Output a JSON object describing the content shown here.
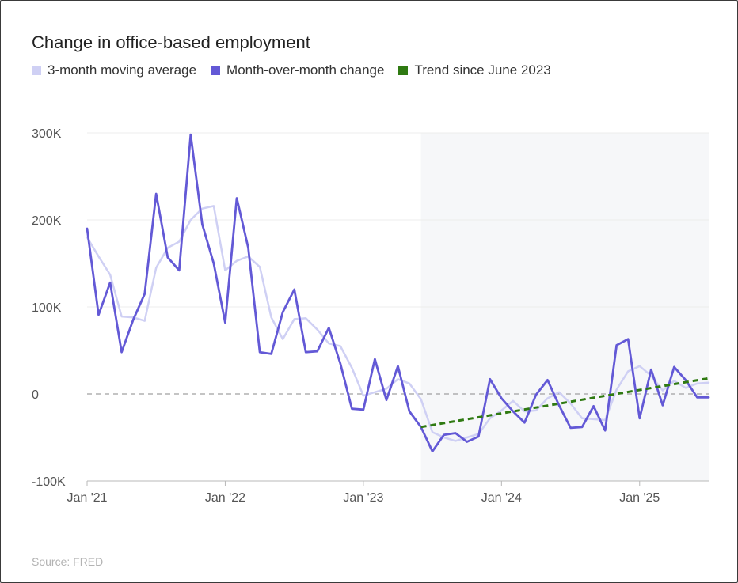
{
  "title": "Change in office-based employment",
  "source": "Source: FRED",
  "legend": [
    {
      "label": "3-month moving average",
      "color": "#cfd0f4"
    },
    {
      "label": "Month-over-month change",
      "color": "#6359d6"
    },
    {
      "label": "Trend since June 2023",
      "color": "#2f7a12"
    }
  ],
  "chart_data": {
    "type": "line",
    "title": "Change in office-based employment",
    "xlabel": "",
    "ylabel": "",
    "ylim": [
      -100000,
      300000
    ],
    "y_ticks": [
      {
        "value": 300000,
        "label": "300K"
      },
      {
        "value": 200000,
        "label": "200K"
      },
      {
        "value": 100000,
        "label": "100K"
      },
      {
        "value": 0,
        "label": "0"
      },
      {
        "value": -100000,
        "label": "-100K"
      }
    ],
    "x_ticks": [
      {
        "value": "2021-01",
        "label": "Jan '21"
      },
      {
        "value": "2022-01",
        "label": "Jan '22"
      },
      {
        "value": "2023-01",
        "label": "Jan '23"
      },
      {
        "value": "2024-01",
        "label": "Jan '24"
      },
      {
        "value": "2025-01",
        "label": "Jan '25"
      }
    ],
    "highlight_period": {
      "from": "2023-06",
      "to": "2025-07"
    },
    "zero_line": "dashed",
    "grid": true,
    "x": [
      "2021-01",
      "2021-02",
      "2021-03",
      "2021-04",
      "2021-05",
      "2021-06",
      "2021-07",
      "2021-08",
      "2021-09",
      "2021-10",
      "2021-11",
      "2021-12",
      "2022-01",
      "2022-02",
      "2022-03",
      "2022-04",
      "2022-05",
      "2022-06",
      "2022-07",
      "2022-08",
      "2022-09",
      "2022-10",
      "2022-11",
      "2022-12",
      "2023-01",
      "2023-02",
      "2023-03",
      "2023-04",
      "2023-05",
      "2023-06",
      "2023-07",
      "2023-08",
      "2023-09",
      "2023-10",
      "2023-11",
      "2023-12",
      "2024-01",
      "2024-02",
      "2024-03",
      "2024-04",
      "2024-05",
      "2024-06",
      "2024-07",
      "2024-08",
      "2024-09",
      "2024-10",
      "2024-11",
      "2024-12",
      "2025-01",
      "2025-02",
      "2025-03",
      "2025-04",
      "2025-05",
      "2025-06",
      "2025-07"
    ],
    "series": [
      {
        "name": "3-month moving average",
        "color": "#cfd0f4",
        "values": [
          180000,
          158000,
          137000,
          89000,
          88000,
          84000,
          145000,
          168000,
          175000,
          200000,
          213000,
          216000,
          142000,
          153000,
          158000,
          146000,
          88000,
          63000,
          86000,
          87000,
          74000,
          58000,
          55000,
          30000,
          -2000,
          2000,
          6000,
          17000,
          12000,
          -6000,
          -44000,
          -50000,
          -54000,
          -50000,
          -46000,
          -28000,
          -19000,
          -8000,
          -20000,
          -19000,
          -5000,
          2000,
          -11000,
          -28000,
          -29000,
          -30000,
          5000,
          26000,
          32000,
          21000,
          4000,
          15000,
          7000,
          12000,
          13000
        ]
      },
      {
        "name": "Month-over-month change",
        "color": "#6359d6",
        "values": [
          190000,
          91000,
          128000,
          48000,
          85000,
          115000,
          230000,
          157000,
          142000,
          298000,
          195000,
          150000,
          82000,
          225000,
          168000,
          48000,
          46000,
          94000,
          120000,
          48000,
          49000,
          76000,
          35000,
          -17000,
          -18000,
          40000,
          -7000,
          32000,
          -20000,
          -38000,
          -66000,
          -47000,
          -45000,
          -55000,
          -49000,
          17000,
          -5000,
          -20000,
          -33000,
          -1000,
          16000,
          -13000,
          -39000,
          -38000,
          -14000,
          -42000,
          56000,
          63000,
          -28000,
          28000,
          -13000,
          31000,
          16000,
          -4000,
          -4000
        ]
      },
      {
        "name": "Trend since June 2023",
        "color": "#2f7a12",
        "dashed": true,
        "x_range": [
          "2023-06",
          "2025-07"
        ],
        "values_range": [
          -38000,
          18000
        ]
      }
    ]
  }
}
